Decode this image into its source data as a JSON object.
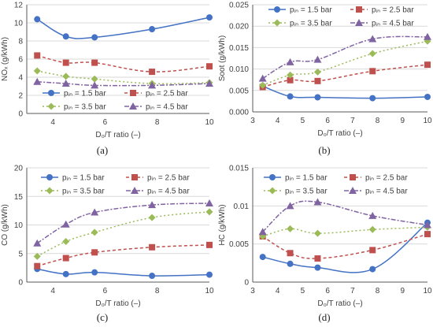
{
  "figure": {
    "panel_letters": [
      "(a)",
      "(b)",
      "(c)",
      "(d)"
    ]
  },
  "colors": {
    "p15": "#4472C4",
    "p25": "#C0504D",
    "p35": "#9BBB59",
    "p45": "#8064A2",
    "grid": "#D9D9D9",
    "axis": "#595959",
    "text": "#404040"
  },
  "chart_data": [
    {
      "id": "a",
      "type": "line",
      "xlabel": "D₀/T ratio (–)",
      "ylabel": "NOₓ (g/kWh)",
      "xlim": [
        3,
        10
      ],
      "ylim": [
        0,
        12
      ],
      "xticks": [
        4,
        6,
        8,
        10
      ],
      "yticks": [
        0,
        2,
        4,
        6,
        8,
        10,
        12
      ],
      "ytick_labels": [
        "0",
        "2",
        "4",
        "6",
        "8",
        "10",
        "12"
      ],
      "x": [
        3.4,
        4.5,
        5.6,
        7.8,
        10
      ],
      "legend_position": "bottom-left",
      "series": [
        {
          "name": "pᵢₙ = 1.5 bar",
          "key": "p15",
          "marker": "circle",
          "values": [
            10.4,
            8.5,
            8.4,
            9.3,
            10.6
          ]
        },
        {
          "name": "pᵢₙ = 2.5 bar",
          "key": "p25",
          "marker": "square",
          "values": [
            6.4,
            5.6,
            5.6,
            4.6,
            5.2
          ]
        },
        {
          "name": "pᵢₙ = 3.5 bar",
          "key": "p35",
          "marker": "diamond",
          "values": [
            4.7,
            4.1,
            3.8,
            3.3,
            3.4
          ]
        },
        {
          "name": "pᵢₙ = 4.5 bar",
          "key": "p45",
          "marker": "triangle",
          "values": [
            3.5,
            3.3,
            3.1,
            3.1,
            3.3
          ]
        }
      ]
    },
    {
      "id": "b",
      "type": "line",
      "xlabel": "D₀/T ratio (–)",
      "ylabel": "Soot (g/kWh)",
      "xlim": [
        3,
        10
      ],
      "ylim": [
        0,
        0.025
      ],
      "xticks": [
        3,
        4,
        5,
        6,
        7,
        8,
        9,
        10
      ],
      "yticks": [
        0,
        0.005,
        0.01,
        0.015,
        0.02,
        0.025
      ],
      "ytick_labels": [
        "0.000",
        "0.005",
        "0.010",
        "0.015",
        "0.020",
        "0.025"
      ],
      "x": [
        3.4,
        4.5,
        5.6,
        7.8,
        10
      ],
      "legend_position": "top-left",
      "series": [
        {
          "name": "pᵢₙ = 1.5 bar",
          "key": "p15",
          "marker": "circle",
          "values": [
            0.006,
            0.0036,
            0.0034,
            0.0032,
            0.0035
          ]
        },
        {
          "name": "pᵢₙ = 2.5 bar",
          "key": "p25",
          "marker": "square",
          "values": [
            0.0058,
            0.0074,
            0.0072,
            0.0095,
            0.011
          ]
        },
        {
          "name": "pᵢₙ = 3.5 bar",
          "key": "p35",
          "marker": "diamond",
          "values": [
            0.0062,
            0.0086,
            0.0093,
            0.0136,
            0.0165
          ]
        },
        {
          "name": "pᵢₙ = 4.5 bar",
          "key": "p45",
          "marker": "triangle",
          "values": [
            0.0078,
            0.0116,
            0.0122,
            0.017,
            0.0175
          ]
        }
      ]
    },
    {
      "id": "c",
      "type": "line",
      "xlabel": "D₀/T ratio (–)",
      "ylabel": "CO  (g/kWh)",
      "xlim": [
        3,
        10
      ],
      "ylim": [
        0,
        20
      ],
      "xticks": [
        4,
        6,
        8,
        10
      ],
      "yticks": [
        0,
        5,
        10,
        15,
        20
      ],
      "ytick_labels": [
        "0",
        "5",
        "10",
        "15",
        "20"
      ],
      "x": [
        3.4,
        4.5,
        5.6,
        7.8,
        10
      ],
      "legend_position": "top",
      "series": [
        {
          "name": "pᵢₙ = 1.5 bar",
          "key": "p15",
          "marker": "circle",
          "values": [
            2.3,
            1.4,
            1.7,
            1.1,
            1.3
          ]
        },
        {
          "name": "pᵢₙ = 2.5 bar",
          "key": "p25",
          "marker": "square",
          "values": [
            2.8,
            4.2,
            5.2,
            6.1,
            6.5
          ]
        },
        {
          "name": "pᵢₙ = 3.5 bar",
          "key": "p35",
          "marker": "diamond",
          "values": [
            4.5,
            7.1,
            8.7,
            11.3,
            12.3
          ]
        },
        {
          "name": "pᵢₙ = 4.5 bar",
          "key": "p45",
          "marker": "triangle",
          "values": [
            6.8,
            10.1,
            12.2,
            13.5,
            13.8
          ]
        }
      ]
    },
    {
      "id": "d",
      "type": "line",
      "xlabel": "D₀/T ratio (–)",
      "ylabel": "HC  (g/kWh)",
      "xlim": [
        3,
        10
      ],
      "ylim": [
        0,
        0.015
      ],
      "xticks": [
        3,
        4,
        5,
        6,
        7,
        8,
        9,
        10
      ],
      "yticks": [
        0,
        0.005,
        0.01,
        0.015
      ],
      "ytick_labels": [
        "0",
        "0.005",
        "0.01",
        "0.015"
      ],
      "x": [
        3.4,
        4.5,
        5.6,
        7.8,
        10
      ],
      "legend_position": "top",
      "series": [
        {
          "name": "pᵢₙ = 1.5 bar",
          "key": "p15",
          "marker": "circle",
          "values": [
            0.0033,
            0.0024,
            0.0019,
            0.0017,
            0.0078
          ]
        },
        {
          "name": "pᵢₙ = 2.5 bar",
          "key": "p25",
          "marker": "square",
          "values": [
            0.006,
            0.0038,
            0.0031,
            0.0042,
            0.0063
          ]
        },
        {
          "name": "pᵢₙ = 3.5 bar",
          "key": "p35",
          "marker": "diamond",
          "values": [
            0.006,
            0.007,
            0.0064,
            0.0069,
            0.0072
          ]
        },
        {
          "name": "pᵢₙ = 4.5 bar",
          "key": "p45",
          "marker": "triangle",
          "values": [
            0.0066,
            0.01,
            0.0105,
            0.0087,
            0.0075
          ]
        }
      ]
    }
  ]
}
